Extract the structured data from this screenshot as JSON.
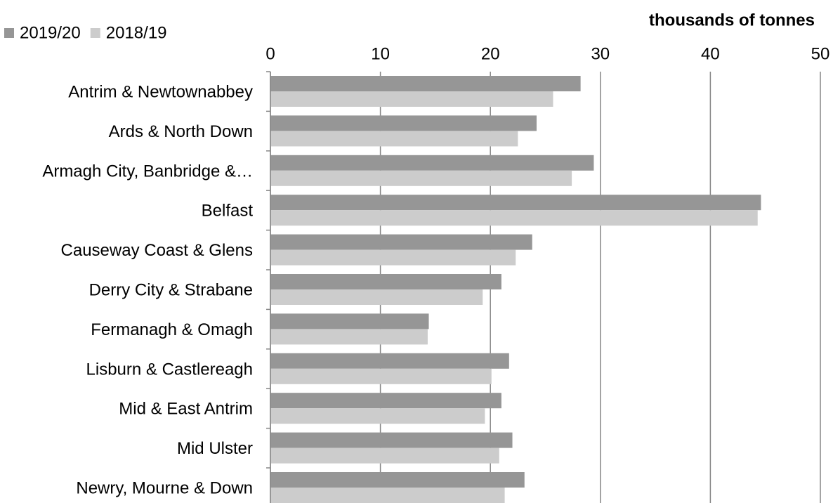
{
  "chart_data": {
    "type": "bar",
    "orientation": "horizontal",
    "axis_label": "thousands of tonnes",
    "categories": [
      "Antrim & Newtownabbey",
      "Ards & North Down",
      "Armagh City, Banbridge &…",
      "Belfast",
      "Causeway Coast & Glens",
      "Derry City & Strabane",
      "Fermanagh & Omagh",
      "Lisburn & Castlereagh",
      "Mid & East Antrim",
      "Mid Ulster",
      "Newry, Mourne & Down"
    ],
    "series": [
      {
        "name": "2019/20",
        "color": "#969696",
        "values": [
          28.2,
          24.2,
          29.4,
          44.6,
          23.8,
          21.0,
          14.4,
          21.7,
          21.0,
          22.0,
          23.1
        ]
      },
      {
        "name": "2018/19",
        "color": "#cccccc",
        "values": [
          25.7,
          22.5,
          27.4,
          44.3,
          22.3,
          19.3,
          14.3,
          20.1,
          19.5,
          20.8,
          21.3
        ]
      }
    ],
    "xlim": [
      0,
      50
    ],
    "xticks": [
      0,
      10,
      20,
      30,
      40,
      50
    ],
    "grid": true,
    "legend": "top-left"
  }
}
